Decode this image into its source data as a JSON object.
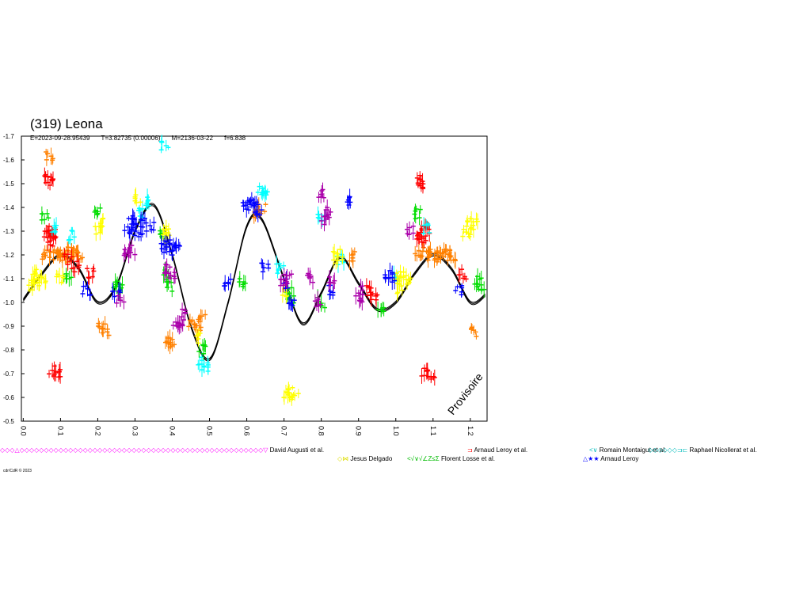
{
  "header": {
    "title": "(319) Leona",
    "epoch": "E=2023-09-28.95439",
    "period": "T=3.82735 (0.00006)",
    "m": "M=2136-03-22",
    "f": "f=6.838"
  },
  "watermark": "Provisoire",
  "credit": "cdr/CdR © 2023",
  "chart_data": {
    "type": "scatter",
    "title": "(319) Leona",
    "xlabel": "",
    "ylabel": "",
    "xlim": [
      -0.005,
      1.245
    ],
    "ylim": [
      -0.5,
      -1.7
    ],
    "x_ticks": [
      "0.0",
      "0.1",
      "0.2",
      "0.3",
      "0.4",
      "0.5",
      "0.6",
      "0.7",
      "0.8",
      "0.9",
      "1.0",
      "1.1",
      "1.2"
    ],
    "y_ticks": [
      "-0.5",
      "-0.6",
      "-0.7",
      "-0.8",
      "-0.9",
      "-1.0",
      "-1.1",
      "-1.2",
      "-1.3",
      "-1.4",
      "-1.5",
      "-1.6",
      "-1.7"
    ],
    "grid": false,
    "legend_position": "bottom",
    "curve": [
      [
        0.0,
        -1.01
      ],
      [
        0.05,
        -1.12
      ],
      [
        0.1,
        -1.2
      ],
      [
        0.15,
        -1.14
      ],
      [
        0.2,
        -1.0
      ],
      [
        0.25,
        -1.07
      ],
      [
        0.3,
        -1.3
      ],
      [
        0.35,
        -1.41
      ],
      [
        0.4,
        -1.2
      ],
      [
        0.45,
        -0.9
      ],
      [
        0.5,
        -0.76
      ],
      [
        0.55,
        -1.0
      ],
      [
        0.6,
        -1.32
      ],
      [
        0.64,
        -1.35
      ],
      [
        0.7,
        -1.1
      ],
      [
        0.75,
        -0.91
      ],
      [
        0.8,
        -1.04
      ],
      [
        0.85,
        -1.19
      ],
      [
        0.9,
        -1.08
      ],
      [
        0.95,
        -0.97
      ],
      [
        1.0,
        -1.0
      ],
      [
        1.05,
        -1.12
      ],
      [
        1.1,
        -1.2
      ],
      [
        1.15,
        -1.14
      ],
      [
        1.2,
        -1.0
      ],
      [
        1.24,
        -1.03
      ]
    ],
    "series": [
      {
        "name": "",
        "color": "#ff8000",
        "x": [
          0.06,
          0.08,
          0.09,
          0.1,
          0.11,
          0.12,
          0.13,
          0.14,
          0.15,
          0.39,
          0.395,
          0.45,
          0.47,
          0.48,
          0.07,
          1.06,
          1.08,
          1.09,
          1.1,
          1.11,
          1.12,
          1.13,
          1.14,
          1.15,
          0.63,
          0.64,
          0.21,
          0.22,
          0.88,
          1.21
        ],
        "y": [
          -1.2,
          -1.21,
          -1.2,
          -1.2,
          -1.19,
          -1.2,
          -1.21,
          -1.2,
          -1.19,
          -0.85,
          -0.83,
          -0.91,
          -0.88,
          -0.93,
          -1.62,
          -1.2,
          -1.21,
          -1.2,
          -1.2,
          -1.19,
          -1.2,
          -1.21,
          -1.2,
          -1.19,
          -1.38,
          -1.39,
          -0.9,
          -0.88,
          -1.19,
          -0.88
        ]
      },
      {
        "name": "",
        "color": "#ff0000",
        "x": [
          0.065,
          0.07,
          0.075,
          0.08,
          0.068,
          0.07,
          0.078,
          0.095,
          1.065,
          1.07,
          1.075,
          1.08,
          1.068,
          1.07,
          1.078,
          1.095,
          0.12,
          0.14,
          0.18,
          1.18,
          0.93,
          0.94
        ],
        "y": [
          -1.28,
          -1.3,
          -1.26,
          -1.29,
          -1.52,
          -1.5,
          -0.71,
          -0.7,
          -1.28,
          -1.3,
          -1.26,
          -1.29,
          -1.52,
          -1.5,
          -0.71,
          -0.7,
          -1.18,
          -1.15,
          -1.12,
          -1.12,
          -1.05,
          -1.03
        ]
      },
      {
        "name": "",
        "color": "#00ffff",
        "x": [
          0.08,
          0.13,
          0.32,
          0.33,
          0.38,
          0.48,
          0.49,
          0.64,
          0.65,
          0.69,
          0.8,
          0.85,
          1.08,
          1.0
        ],
        "y": [
          -1.31,
          -1.28,
          -1.38,
          -1.43,
          -1.66,
          -0.75,
          -0.73,
          -1.47,
          -1.47,
          -1.14,
          -1.35,
          -1.18,
          -1.31,
          -1.1
        ]
      },
      {
        "name": "",
        "color": "#00dd00",
        "x": [
          0.06,
          0.12,
          0.2,
          0.25,
          0.26,
          0.37,
          0.385,
          0.395,
          0.48,
          0.71,
          0.72,
          0.8,
          0.96,
          1.06,
          1.22,
          1.23,
          0.59
        ],
        "y": [
          -1.37,
          -1.1,
          -1.38,
          -1.07,
          -1.06,
          -1.29,
          -1.12,
          -1.07,
          -0.8,
          -1.04,
          -1.02,
          -1.0,
          -0.98,
          -1.37,
          -1.09,
          -1.06,
          -1.08
        ]
      },
      {
        "name": "Jesus Delgado",
        "color": "#ffff00",
        "x": [
          0.02,
          0.03,
          0.04,
          0.05,
          0.1,
          0.2,
          0.21,
          0.31,
          0.38,
          0.39,
          0.47,
          0.7,
          0.71,
          0.72,
          0.73,
          0.84,
          0.85,
          1.0,
          1.01,
          1.02,
          1.03,
          1.19,
          1.2,
          1.21
        ],
        "y": [
          -1.07,
          -1.1,
          -1.12,
          -1.09,
          -1.1,
          -1.3,
          -1.34,
          -1.43,
          -1.3,
          -1.27,
          -0.85,
          -1.04,
          -0.6,
          -0.62,
          -0.61,
          -1.2,
          -1.17,
          -1.1,
          -1.06,
          -1.12,
          -1.09,
          -1.3,
          -1.34,
          -1.33
        ]
      },
      {
        "name": "Arnaud Leroy",
        "color": "#0000ff",
        "x": [
          0.17,
          0.28,
          0.29,
          0.3,
          0.31,
          0.32,
          0.34,
          0.38,
          0.39,
          0.4,
          0.41,
          0.55,
          0.6,
          0.61,
          0.62,
          0.63,
          0.65,
          0.7,
          0.72,
          0.83,
          0.87,
          0.98,
          0.99,
          1.17,
          0.25
        ],
        "y": [
          -1.05,
          -1.3,
          -1.33,
          -1.35,
          -1.3,
          -1.34,
          -1.32,
          -1.23,
          -1.25,
          -1.22,
          -1.24,
          -1.09,
          -1.4,
          -1.43,
          -1.42,
          -1.39,
          -1.15,
          -1.08,
          -1.0,
          -1.05,
          -1.43,
          -1.12,
          -1.1,
          -1.05,
          -1.04
        ]
      },
      {
        "name": "",
        "color": "#aa00aa",
        "x": [
          0.28,
          0.29,
          0.39,
          0.4,
          0.42,
          0.43,
          0.7,
          0.71,
          0.77,
          0.79,
          0.8,
          0.81,
          0.82,
          0.83,
          0.9,
          0.91,
          1.04,
          0.26,
          0.41
        ],
        "y": [
          -1.2,
          -1.22,
          -1.14,
          -1.12,
          -0.92,
          -0.95,
          -1.08,
          -1.1,
          -1.1,
          -1.0,
          -1.46,
          -1.35,
          -1.38,
          -1.1,
          -1.02,
          -1.05,
          -1.3,
          -1.01,
          -0.9
        ]
      },
      {
        "name": "",
        "color": "#000000",
        "x": [],
        "y": []
      }
    ],
    "legend": [
      {
        "marker": "◇◇◇△◇◇◇◇◇◇◇◇◇◇◇◇◇◇◇◇◇◇◇◇◇◇◇◇◇◇◇◇◇◇◇◇◇◇◇◇◇◇◇◇◇◇◇◇◇◇◇◇◇◇▽",
        "label": "David Augusti et al."
      },
      {
        "marker": "⊐",
        "label": "Arnaud Leroy et al."
      },
      {
        "marker": "<∨",
        "label": "Romain Montaigut et al."
      },
      {
        "marker": "◇◇◇◇◇◇⊐⊏",
        "label": "Raphael Nicollerat et al."
      },
      {
        "marker": "◇⋈",
        "label": "Jesus Delgado"
      },
      {
        "marker": "<√∨√∠Z≤Σ",
        "label": "Florent Losse et al."
      },
      {
        "marker": "△★★",
        "label": "Arnaud Leroy"
      }
    ]
  }
}
